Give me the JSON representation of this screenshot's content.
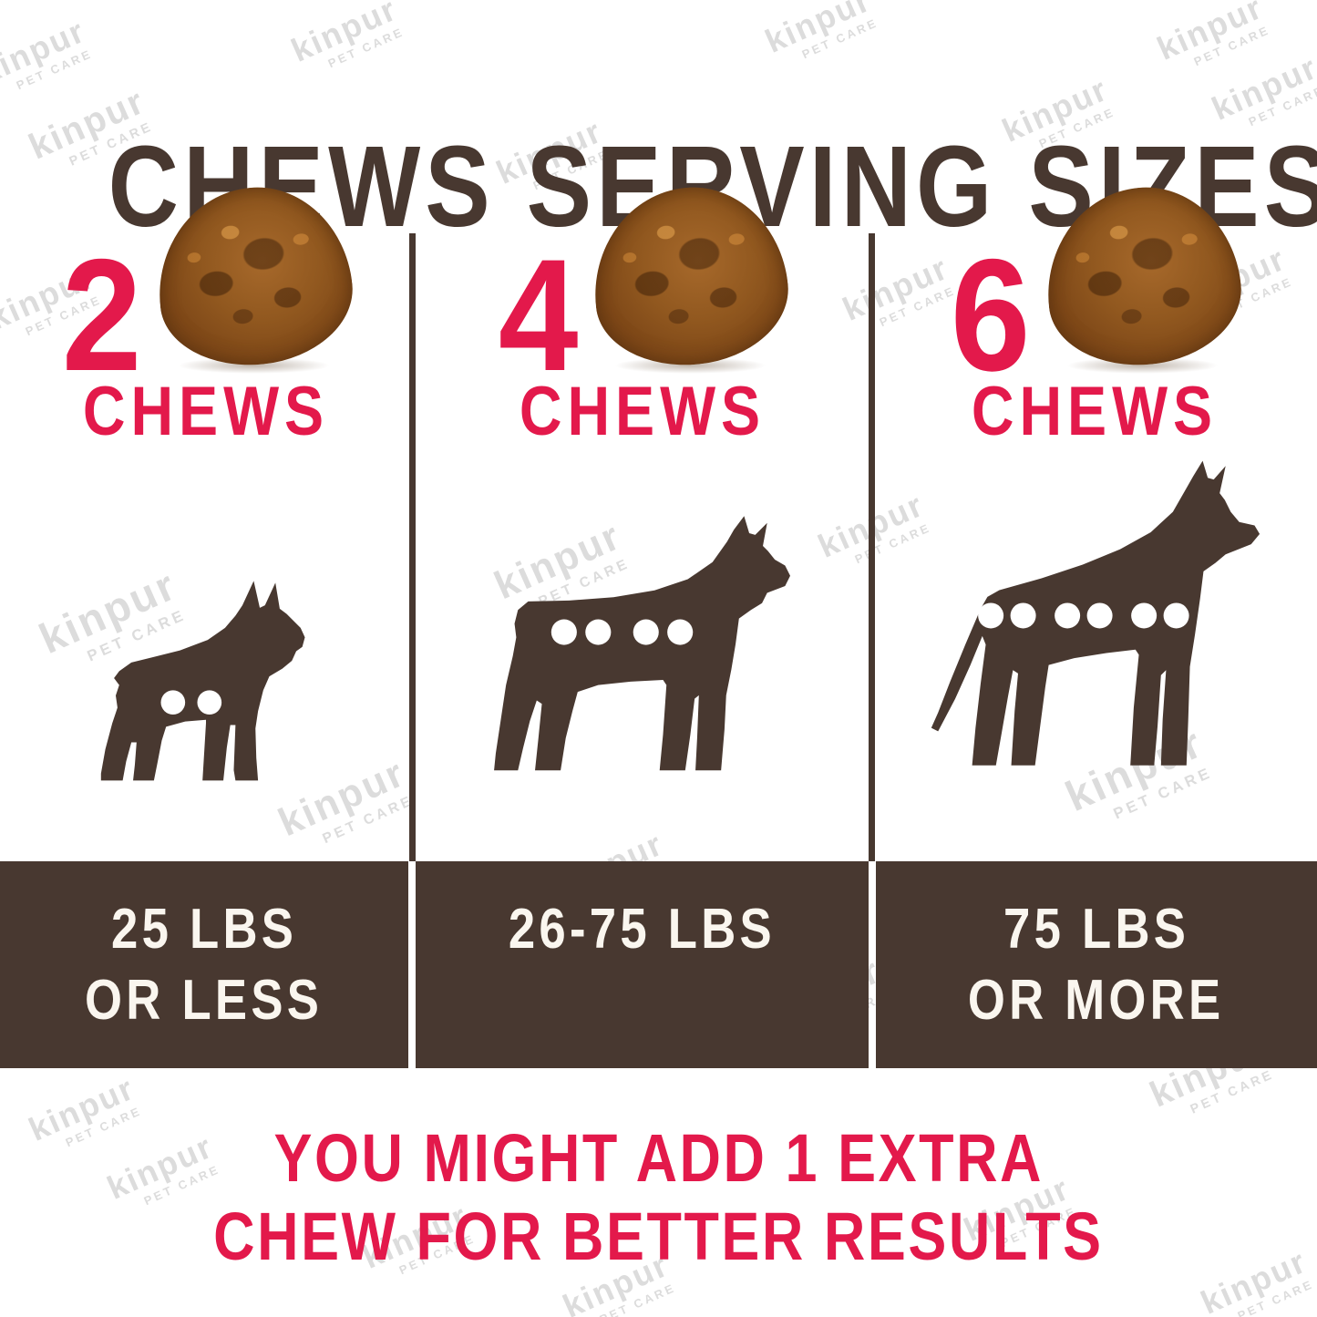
{
  "title": "CHEWS SERVING SIZES",
  "brand_watermark": {
    "name": "kinpur",
    "tagline": "PET CARE"
  },
  "columns": [
    {
      "chew_count": "2",
      "chew_unit": "CHEWS",
      "dog_breed": "small-dog",
      "weight_lines": [
        "25 LBS",
        "OR LESS"
      ]
    },
    {
      "chew_count": "4",
      "chew_unit": "CHEWS",
      "dog_breed": "medium-dog",
      "weight_lines": [
        "26-75 LBS",
        ""
      ]
    },
    {
      "chew_count": "6",
      "chew_unit": "CHEWS",
      "dog_breed": "large-dog",
      "weight_lines": [
        "75 LBS",
        "OR MORE"
      ]
    }
  ],
  "footer": {
    "line1": "YOU MIGHT ADD 1 EXTRA",
    "line2": "CHEW FOR BETTER RESULTS"
  },
  "colors": {
    "brown": "#483830",
    "red": "#e3194b",
    "bar_text": "#faf6ef",
    "watermark": "#dcdcdc",
    "background": "#ffffff"
  }
}
